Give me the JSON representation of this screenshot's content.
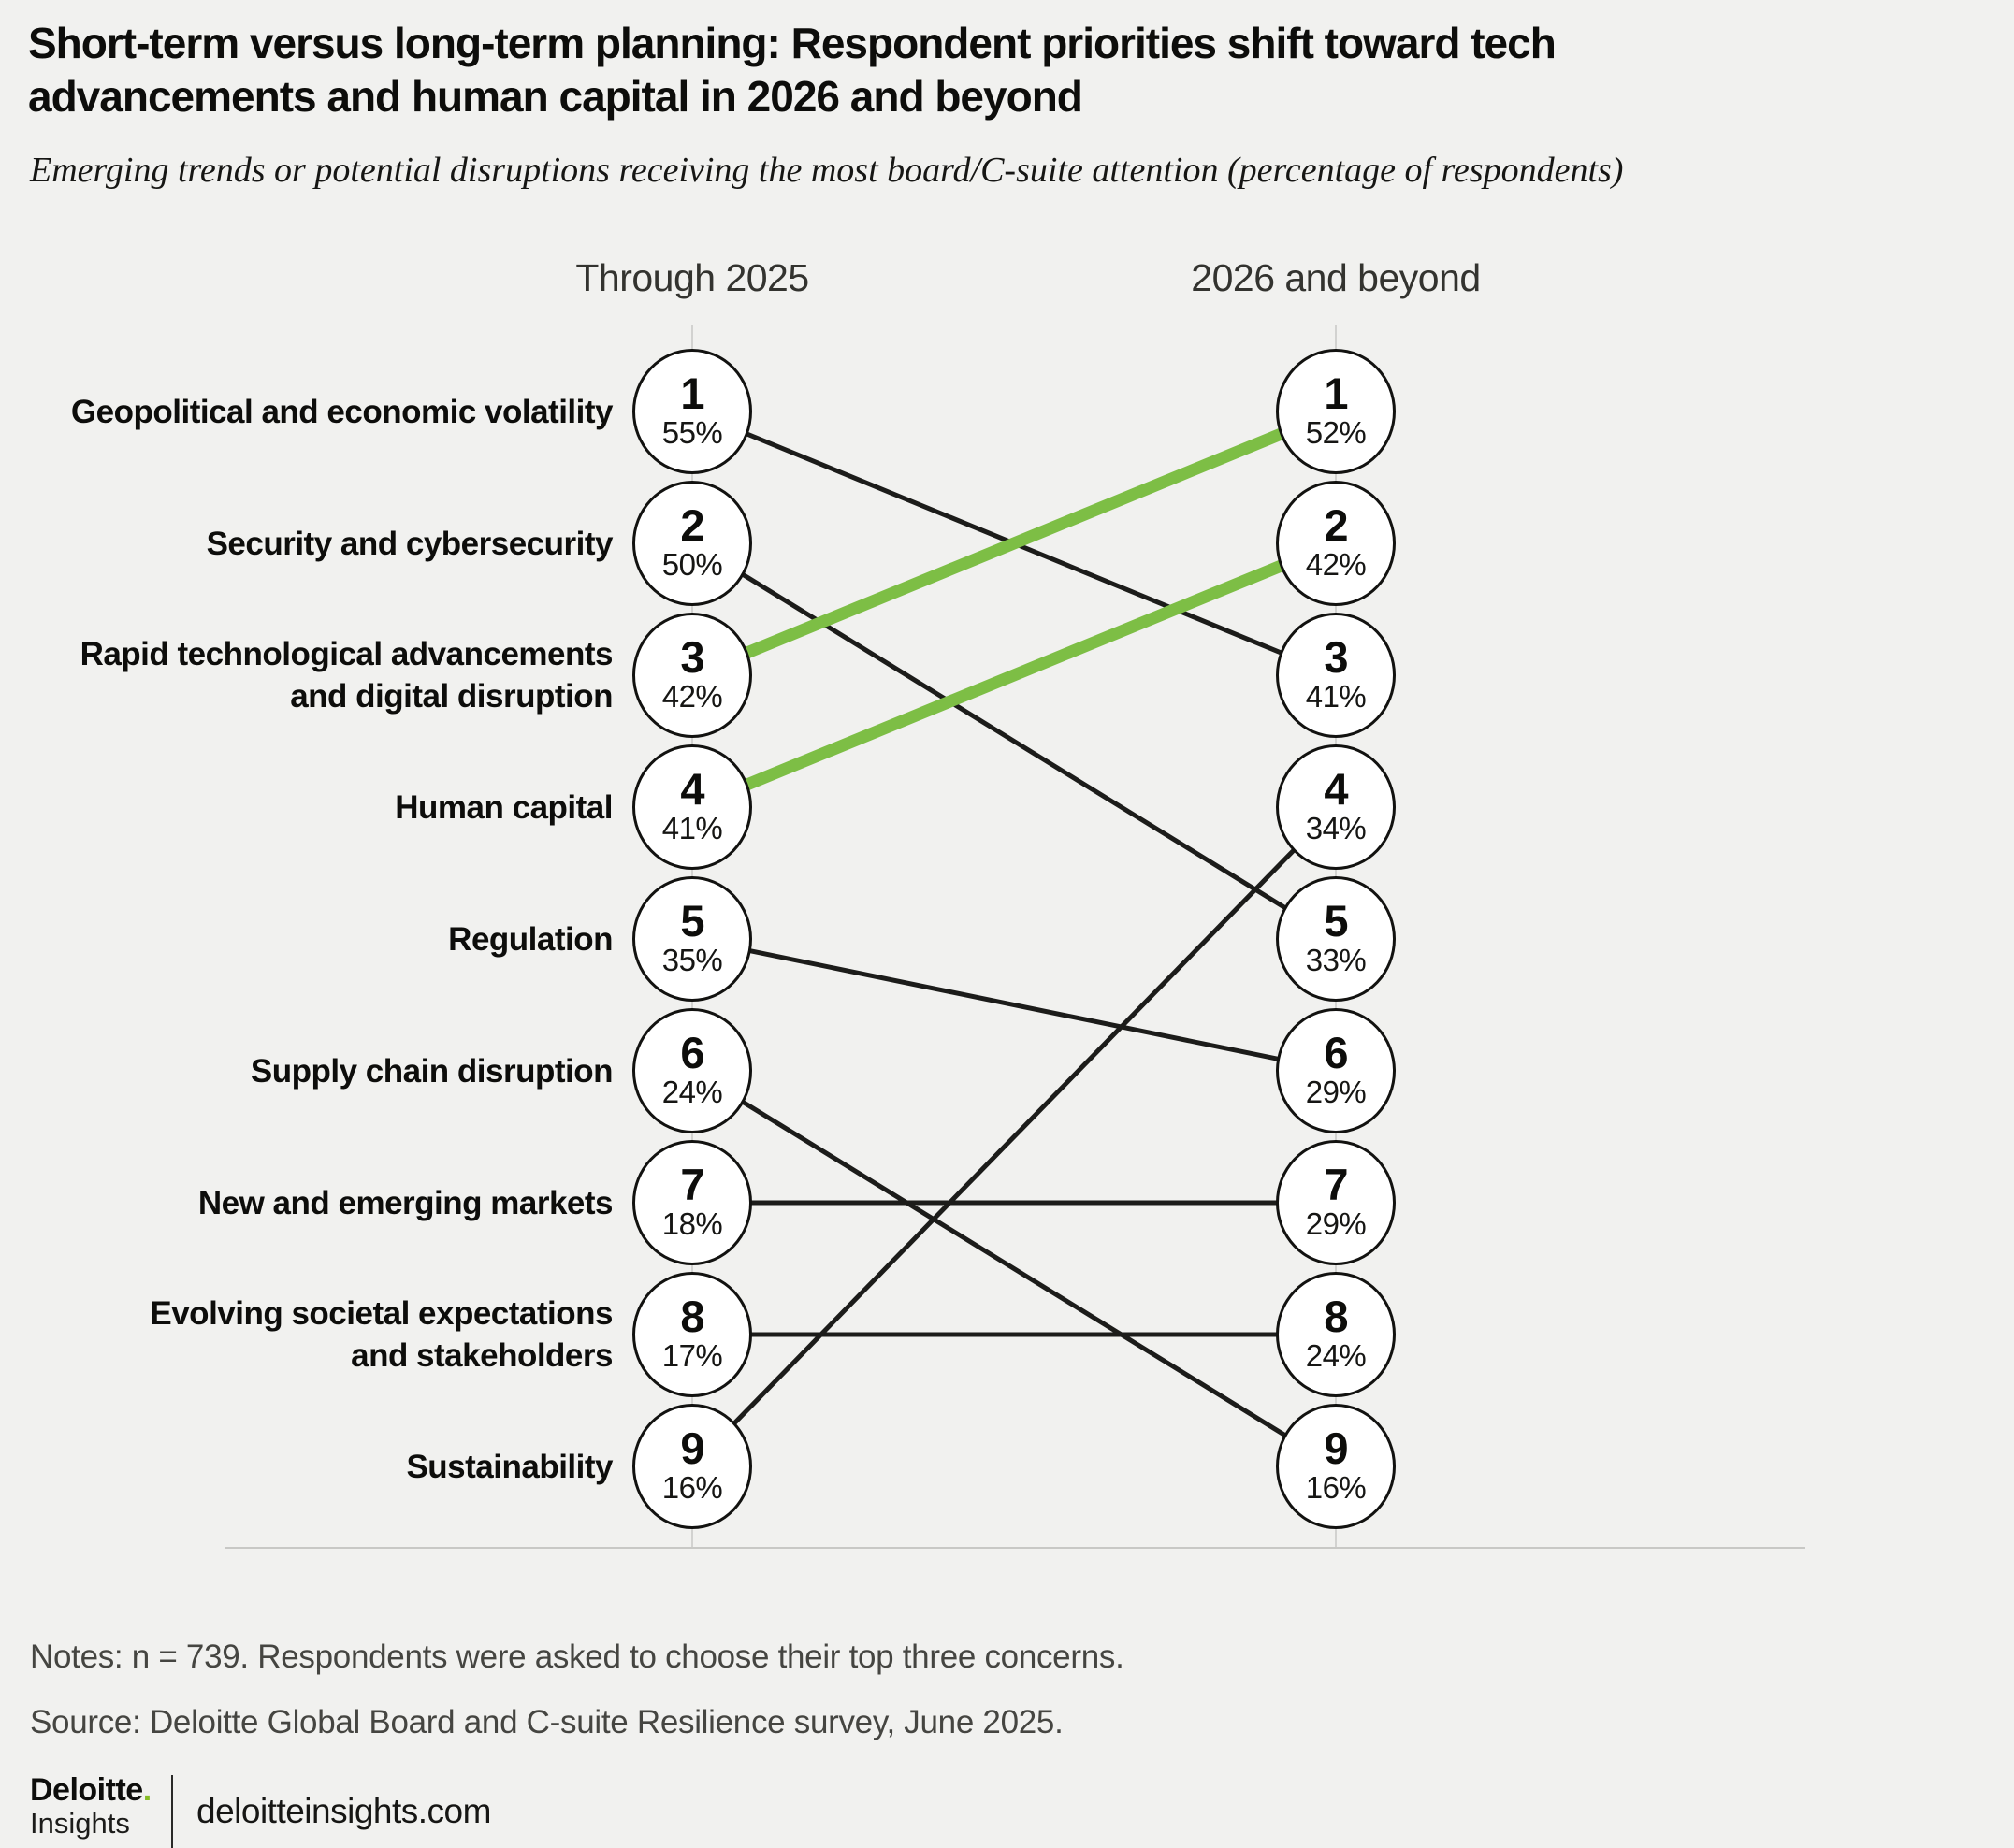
{
  "page": {
    "title_line1": "Short-term versus long-term planning: Respondent priorities shift toward tech",
    "title_line2": "advancements and human capital in 2026 and beyond",
    "subtitle": "Emerging trends or potential disruptions receiving the most board/C-suite attention (percentage of respondents)",
    "notes": "Notes: n = 739. Respondents were asked to choose their top three concerns.",
    "source": "Source: Deloitte Global Board and C-suite Resilience survey, June 2025.",
    "brand": {
      "name": "Deloitte",
      "dot": ".",
      "sub": "Insights",
      "site": "deloitteinsights.com"
    }
  },
  "colors": {
    "background": "#f1f1ef",
    "slope_line": "#1c1c1a",
    "highlight_line": "#7dbe45",
    "accent_dot": "#86bc25",
    "circle_fill": "#ffffff",
    "circle_stroke": "#121210",
    "axis": "#c8c8c5"
  },
  "chart_data": {
    "type": "slope-rank",
    "title": "Short-term versus long-term planning: Respondent priorities shift toward tech advancements and human capital in 2026 and beyond",
    "subtitle": "Emerging trends or potential disruptions receiving the most board/C-suite attention (percentage of respondents)",
    "unit": "percent of respondents",
    "columns": [
      "Through 2025",
      "2026 and beyond"
    ],
    "rank_range": [
      1,
      9
    ],
    "items": [
      {
        "slug": "geopolitical-and-economic-volatility",
        "label": "Geopolitical and economic volatility",
        "label_lines": [
          "Geopolitical and economic volatility"
        ],
        "left_rank": 1,
        "left_value": 55,
        "right_rank": 3,
        "right_value": 41,
        "highlight": false
      },
      {
        "slug": "security-and-cybersecurity",
        "label": "Security and cybersecurity",
        "label_lines": [
          "Security and cybersecurity"
        ],
        "left_rank": 2,
        "left_value": 50,
        "right_rank": 5,
        "right_value": 33,
        "highlight": false
      },
      {
        "slug": "rapid-technological-advancements-and-digital-disruption",
        "label": "Rapid technological advancements and digital disruption",
        "label_lines": [
          "Rapid technological advancements",
          "and digital disruption"
        ],
        "left_rank": 3,
        "left_value": 42,
        "right_rank": 1,
        "right_value": 52,
        "highlight": true
      },
      {
        "slug": "human-capital",
        "label": "Human capital",
        "label_lines": [
          "Human capital"
        ],
        "left_rank": 4,
        "left_value": 41,
        "right_rank": 2,
        "right_value": 42,
        "highlight": true
      },
      {
        "slug": "regulation",
        "label": "Regulation",
        "label_lines": [
          "Regulation"
        ],
        "left_rank": 5,
        "left_value": 35,
        "right_rank": 6,
        "right_value": 29,
        "highlight": false
      },
      {
        "slug": "supply-chain-disruption",
        "label": "Supply chain disruption",
        "label_lines": [
          "Supply chain disruption"
        ],
        "left_rank": 6,
        "left_value": 24,
        "right_rank": 9,
        "right_value": 16,
        "highlight": false
      },
      {
        "slug": "new-and-emerging-markets",
        "label": "New and emerging markets",
        "label_lines": [
          "New and emerging markets"
        ],
        "left_rank": 7,
        "left_value": 18,
        "right_rank": 7,
        "right_value": 29,
        "highlight": false
      },
      {
        "slug": "evolving-societal-expectations-and-stakeholders",
        "label": "Evolving societal expectations and stakeholders",
        "label_lines": [
          "Evolving societal expectations",
          "and stakeholders"
        ],
        "left_rank": 8,
        "left_value": 17,
        "right_rank": 8,
        "right_value": 24,
        "highlight": false
      },
      {
        "slug": "sustainability",
        "label": "Sustainability",
        "label_lines": [
          "Sustainability"
        ],
        "left_rank": 9,
        "left_value": 16,
        "right_rank": 4,
        "right_value": 34,
        "highlight": false
      }
    ]
  }
}
